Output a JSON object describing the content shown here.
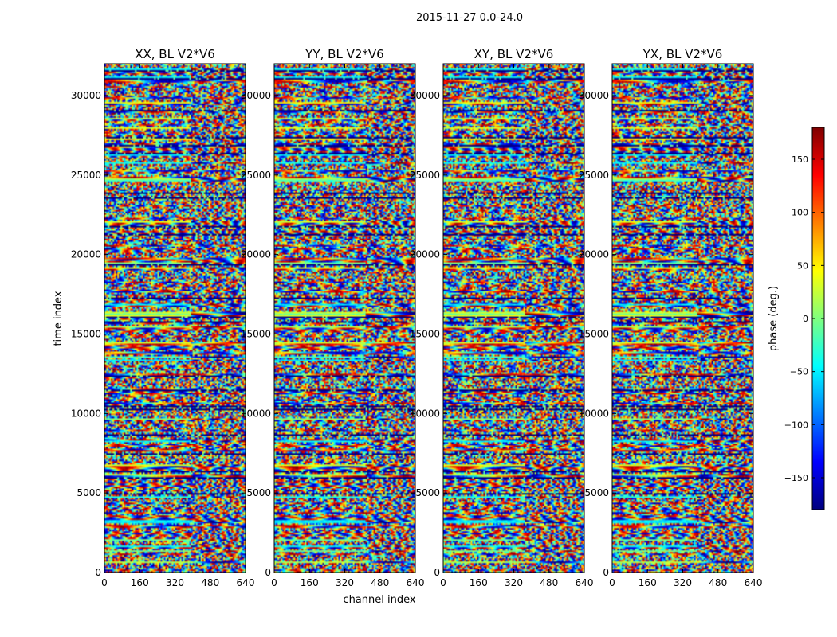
{
  "suptitle": "2015-11-27 0.0-24.0",
  "chart_data": {
    "type": "heatmap",
    "xlabel": "channel index",
    "ylabel": "time index",
    "xlim": [
      0,
      640
    ],
    "ylim": [
      0,
      32000
    ],
    "x_ticks": [
      0,
      160,
      320,
      480,
      640
    ],
    "y_ticks": [
      0,
      5000,
      10000,
      15000,
      20000,
      25000,
      30000
    ],
    "colormap": "jet",
    "jet_colors": [
      "#00007f",
      "#0000ff",
      "#007fff",
      "#00ffff",
      "#7fff7f",
      "#ffff00",
      "#ff7f00",
      "#ff0000",
      "#7f0000"
    ],
    "panels": [
      {
        "title": "XX, BL V2*V6"
      },
      {
        "title": "YY, BL V2*V6"
      },
      {
        "title": "XY, BL V2*V6"
      },
      {
        "title": "YX, BL V2*V6"
      }
    ],
    "colorbar": {
      "label": "phase (deg.)",
      "vmin": -180,
      "vmax": 180,
      "ticks": [
        150,
        100,
        50,
        0,
        -50,
        -100,
        -150
      ],
      "tick_labels": [
        "150",
        "100",
        "50",
        "0",
        "−50",
        "−100",
        "−150"
      ]
    }
  }
}
